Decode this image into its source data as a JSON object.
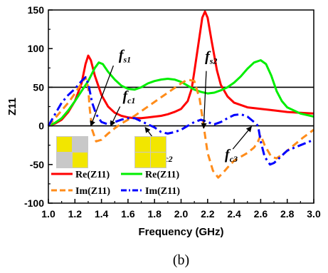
{
  "chart_data": {
    "type": "line",
    "xlabel": "Frequency (GHz)",
    "ylabel": "Z11",
    "caption": "(b)",
    "xlim": [
      1.0,
      3.0
    ],
    "ylim": [
      -100,
      150
    ],
    "xticks": [
      "1.0",
      "1.2",
      "1.4",
      "1.6",
      "1.8",
      "2.0",
      "2.2",
      "2.4",
      "2.6",
      "2.8",
      "3.0"
    ],
    "yticks": [
      "-100",
      "-50",
      "0",
      "50",
      "100",
      "150"
    ],
    "reference_lines": [
      0,
      50
    ],
    "legend": [
      {
        "label": "Re(Z11)",
        "series": 0
      },
      {
        "label": "Re(Z11)",
        "series": 1
      },
      {
        "label": "Im(Z11)",
        "series": 2
      },
      {
        "label": "Im(Z11)",
        "series": 3
      }
    ],
    "series": [
      {
        "color": "#ff0000",
        "dash": "solid",
        "points": [
          [
            1.0,
            0
          ],
          [
            1.05,
            3
          ],
          [
            1.1,
            8
          ],
          [
            1.15,
            18
          ],
          [
            1.2,
            32
          ],
          [
            1.25,
            55
          ],
          [
            1.28,
            80
          ],
          [
            1.3,
            91
          ],
          [
            1.32,
            85
          ],
          [
            1.35,
            65
          ],
          [
            1.4,
            40
          ],
          [
            1.45,
            25
          ],
          [
            1.5,
            17
          ],
          [
            1.55,
            13
          ],
          [
            1.6,
            11
          ],
          [
            1.65,
            10
          ],
          [
            1.7,
            10
          ],
          [
            1.75,
            11
          ],
          [
            1.8,
            12
          ],
          [
            1.85,
            13
          ],
          [
            1.9,
            15
          ],
          [
            1.95,
            18
          ],
          [
            2.0,
            22
          ],
          [
            2.05,
            32
          ],
          [
            2.08,
            48
          ],
          [
            2.1,
            70
          ],
          [
            2.13,
            105
          ],
          [
            2.16,
            140
          ],
          [
            2.18,
            148
          ],
          [
            2.2,
            140
          ],
          [
            2.23,
            110
          ],
          [
            2.27,
            72
          ],
          [
            2.3,
            53
          ],
          [
            2.35,
            38
          ],
          [
            2.4,
            30
          ],
          [
            2.5,
            24
          ],
          [
            2.6,
            22
          ],
          [
            2.7,
            20
          ],
          [
            2.8,
            18
          ],
          [
            2.9,
            17
          ],
          [
            3.0,
            16
          ]
        ]
      },
      {
        "color": "#00ee00",
        "dash": "solid",
        "points": [
          [
            1.0,
            0
          ],
          [
            1.05,
            4
          ],
          [
            1.1,
            10
          ],
          [
            1.15,
            20
          ],
          [
            1.2,
            32
          ],
          [
            1.25,
            45
          ],
          [
            1.3,
            58
          ],
          [
            1.35,
            75
          ],
          [
            1.38,
            82
          ],
          [
            1.41,
            80
          ],
          [
            1.45,
            70
          ],
          [
            1.5,
            60
          ],
          [
            1.55,
            52
          ],
          [
            1.6,
            48
          ],
          [
            1.65,
            47
          ],
          [
            1.7,
            50
          ],
          [
            1.75,
            55
          ],
          [
            1.8,
            58
          ],
          [
            1.85,
            60
          ],
          [
            1.9,
            61
          ],
          [
            1.95,
            60
          ],
          [
            2.0,
            57
          ],
          [
            2.05,
            52
          ],
          [
            2.1,
            47
          ],
          [
            2.15,
            44
          ],
          [
            2.2,
            42
          ],
          [
            2.25,
            43
          ],
          [
            2.3,
            46
          ],
          [
            2.35,
            50
          ],
          [
            2.4,
            56
          ],
          [
            2.45,
            64
          ],
          [
            2.5,
            74
          ],
          [
            2.55,
            82
          ],
          [
            2.6,
            85
          ],
          [
            2.64,
            80
          ],
          [
            2.68,
            65
          ],
          [
            2.72,
            45
          ],
          [
            2.76,
            32
          ],
          [
            2.8,
            24
          ],
          [
            2.9,
            16
          ],
          [
            3.0,
            12
          ]
        ]
      },
      {
        "color": "#ff8c1a",
        "dash": "dash",
        "points": [
          [
            1.0,
            0
          ],
          [
            1.05,
            10
          ],
          [
            1.1,
            20
          ],
          [
            1.15,
            30
          ],
          [
            1.2,
            42
          ],
          [
            1.25,
            55
          ],
          [
            1.28,
            63
          ],
          [
            1.3,
            50
          ],
          [
            1.31,
            25
          ],
          [
            1.33,
            -5
          ],
          [
            1.36,
            -20
          ],
          [
            1.4,
            -18
          ],
          [
            1.45,
            -10
          ],
          [
            1.5,
            -3
          ],
          [
            1.55,
            3
          ],
          [
            1.6,
            8
          ],
          [
            1.65,
            13
          ],
          [
            1.7,
            19
          ],
          [
            1.75,
            25
          ],
          [
            1.8,
            31
          ],
          [
            1.85,
            37
          ],
          [
            1.9,
            43
          ],
          [
            1.95,
            49
          ],
          [
            2.0,
            55
          ],
          [
            2.05,
            60
          ],
          [
            2.1,
            58
          ],
          [
            2.14,
            35
          ],
          [
            2.17,
            0
          ],
          [
            2.2,
            -35
          ],
          [
            2.24,
            -58
          ],
          [
            2.28,
            -67
          ],
          [
            2.32,
            -60
          ],
          [
            2.36,
            -52
          ],
          [
            2.4,
            -45
          ],
          [
            2.45,
            -40
          ],
          [
            2.5,
            -35
          ],
          [
            2.55,
            -28
          ],
          [
            2.58,
            -20
          ],
          [
            2.6,
            -12
          ],
          [
            2.63,
            -25
          ],
          [
            2.68,
            -40
          ],
          [
            2.72,
            -42
          ],
          [
            2.78,
            -35
          ],
          [
            2.85,
            -25
          ],
          [
            2.92,
            -15
          ],
          [
            3.0,
            -5
          ]
        ]
      },
      {
        "color": "#0000ff",
        "dash": "dashdot",
        "points": [
          [
            1.0,
            0
          ],
          [
            1.05,
            15
          ],
          [
            1.1,
            30
          ],
          [
            1.15,
            40
          ],
          [
            1.2,
            48
          ],
          [
            1.25,
            58
          ],
          [
            1.28,
            63
          ],
          [
            1.3,
            55
          ],
          [
            1.33,
            30
          ],
          [
            1.36,
            15
          ],
          [
            1.4,
            5
          ],
          [
            1.45,
            2
          ],
          [
            1.5,
            5
          ],
          [
            1.55,
            8
          ],
          [
            1.6,
            10
          ],
          [
            1.65,
            10
          ],
          [
            1.7,
            6
          ],
          [
            1.75,
            2
          ],
          [
            1.8,
            -2
          ],
          [
            1.85,
            -8
          ],
          [
            1.9,
            -10
          ],
          [
            1.95,
            -8
          ],
          [
            2.0,
            -5
          ],
          [
            2.05,
            0
          ],
          [
            2.1,
            5
          ],
          [
            2.15,
            8
          ],
          [
            2.2,
            5
          ],
          [
            2.25,
            2
          ],
          [
            2.3,
            5
          ],
          [
            2.35,
            10
          ],
          [
            2.4,
            14
          ],
          [
            2.45,
            15
          ],
          [
            2.5,
            12
          ],
          [
            2.55,
            5
          ],
          [
            2.58,
            0
          ],
          [
            2.6,
            -20
          ],
          [
            2.63,
            -40
          ],
          [
            2.67,
            -50
          ],
          [
            2.7,
            -48
          ],
          [
            2.75,
            -40
          ],
          [
            2.8,
            -32
          ],
          [
            2.9,
            -25
          ],
          [
            3.0,
            -18
          ]
        ]
      }
    ],
    "annotations": [
      {
        "base": "f",
        "sub": "s1"
      },
      {
        "base": "f",
        "sub": "c1"
      },
      {
        "base": "f",
        "sub": "s2"
      },
      {
        "base": "f",
        "sub": "c2"
      },
      {
        "base": "f",
        "sub": "c3"
      }
    ]
  }
}
